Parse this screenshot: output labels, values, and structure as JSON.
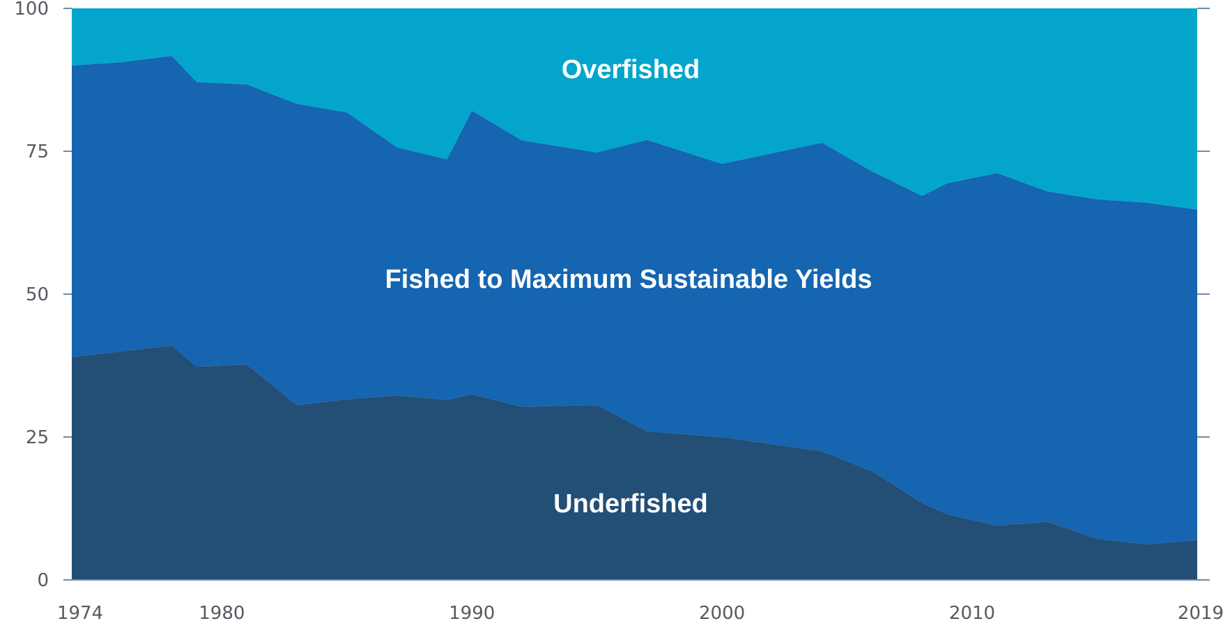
{
  "chart_data": {
    "type": "area",
    "stacked": true,
    "x": [
      1974,
      1976,
      1978,
      1979,
      1981,
      1983,
      1985,
      1987,
      1989,
      1990,
      1992,
      1995,
      1997,
      2000,
      2004,
      2006,
      2008,
      2009,
      2011,
      2013,
      2015,
      2017,
      2019
    ],
    "series": [
      {
        "name": "Underfished",
        "color": "#234e76",
        "values": [
          39.0,
          40.0,
          41.0,
          37.3,
          37.7,
          30.6,
          31.6,
          32.3,
          31.5,
          32.5,
          30.3,
          30.6,
          26.0,
          25.0,
          22.5,
          19.0,
          13.5,
          11.5,
          9.5,
          10.2,
          7.2,
          6.2,
          7.0
        ]
      },
      {
        "name": "Fished to Maximum Sustainable Yields",
        "color": "#1565b0",
        "values": [
          51.0,
          50.6,
          50.7,
          49.8,
          49.0,
          52.7,
          50.2,
          43.4,
          42.1,
          49.6,
          46.6,
          44.2,
          51.0,
          47.8,
          54.0,
          52.5,
          53.7,
          57.9,
          61.7,
          57.8,
          59.4,
          59.8,
          57.8
        ]
      },
      {
        "name": "Overfished",
        "color": "#04a5cc",
        "values": [
          10.0,
          9.4,
          8.3,
          12.9,
          13.3,
          16.7,
          18.2,
          24.3,
          26.4,
          17.9,
          23.1,
          25.2,
          23.0,
          27.2,
          23.5,
          28.5,
          32.8,
          30.6,
          28.8,
          32.0,
          33.4,
          34.0,
          35.2
        ]
      }
    ],
    "xlim": [
      1974,
      2019
    ],
    "ylim": [
      0,
      100
    ],
    "yticks": [
      0,
      25,
      50,
      75,
      100
    ],
    "xticks": [
      1974,
      1980,
      1990,
      2000,
      2010,
      2019
    ],
    "xlabel": "",
    "ylabel": "",
    "grid": false,
    "legend": "none",
    "axis_color": "#6f8aa8",
    "tick_label_color": "#555a60"
  }
}
